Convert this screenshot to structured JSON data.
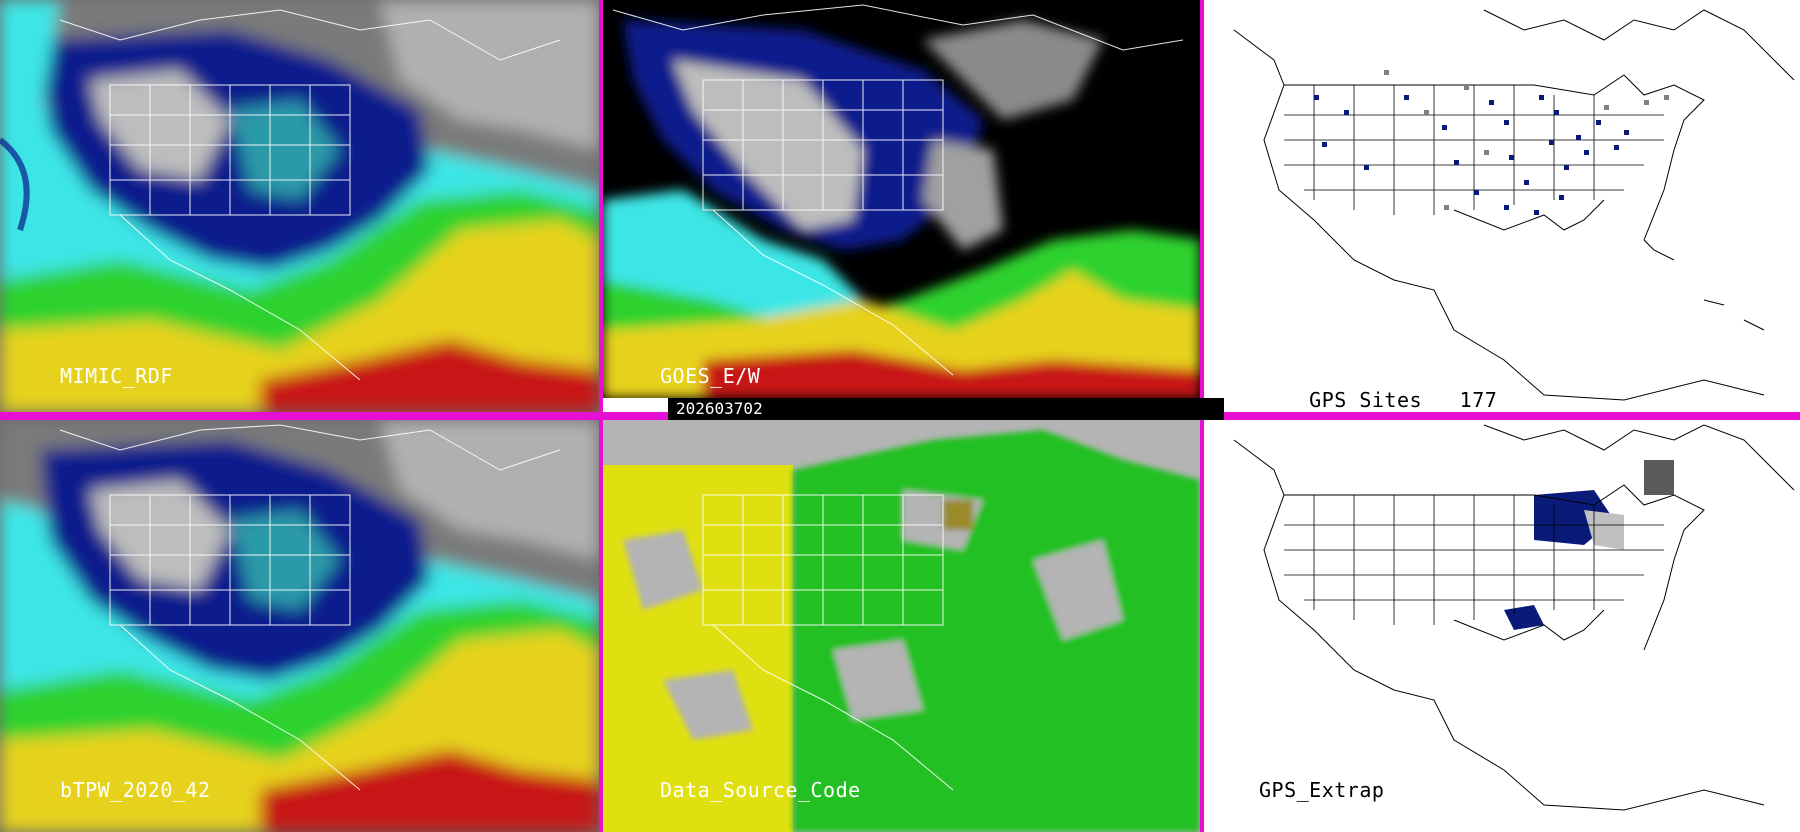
{
  "panels": {
    "mimic_rdf": {
      "label": "MIMIC_RDF"
    },
    "goes_ew": {
      "label": "GOES_E/W"
    },
    "gps_sites": {
      "label": "GPS Sites",
      "count": "177"
    },
    "btpw": {
      "label": "bTPW_2020_42"
    },
    "data_source_code": {
      "label": "Data_Source_Code"
    },
    "gps_extrap": {
      "label": "GPS_Extrap"
    }
  },
  "timestamp": "202603702",
  "colors": {
    "divider": "#e60fd2",
    "tpw_dry_gray": "#9a9a9a",
    "tpw_navy": "#0a1a8c",
    "tpw_blue": "#2d64e6",
    "tpw_teal": "#2a9aa8",
    "tpw_cyan": "#3ce6e6",
    "tpw_green": "#2ed22e",
    "tpw_yellow": "#e6d21e",
    "tpw_red": "#c81414",
    "source_yellow": "#e0e010",
    "source_green": "#20c020",
    "source_gray": "#b4b4b4",
    "gps_site_navy": "#0a1a78"
  }
}
